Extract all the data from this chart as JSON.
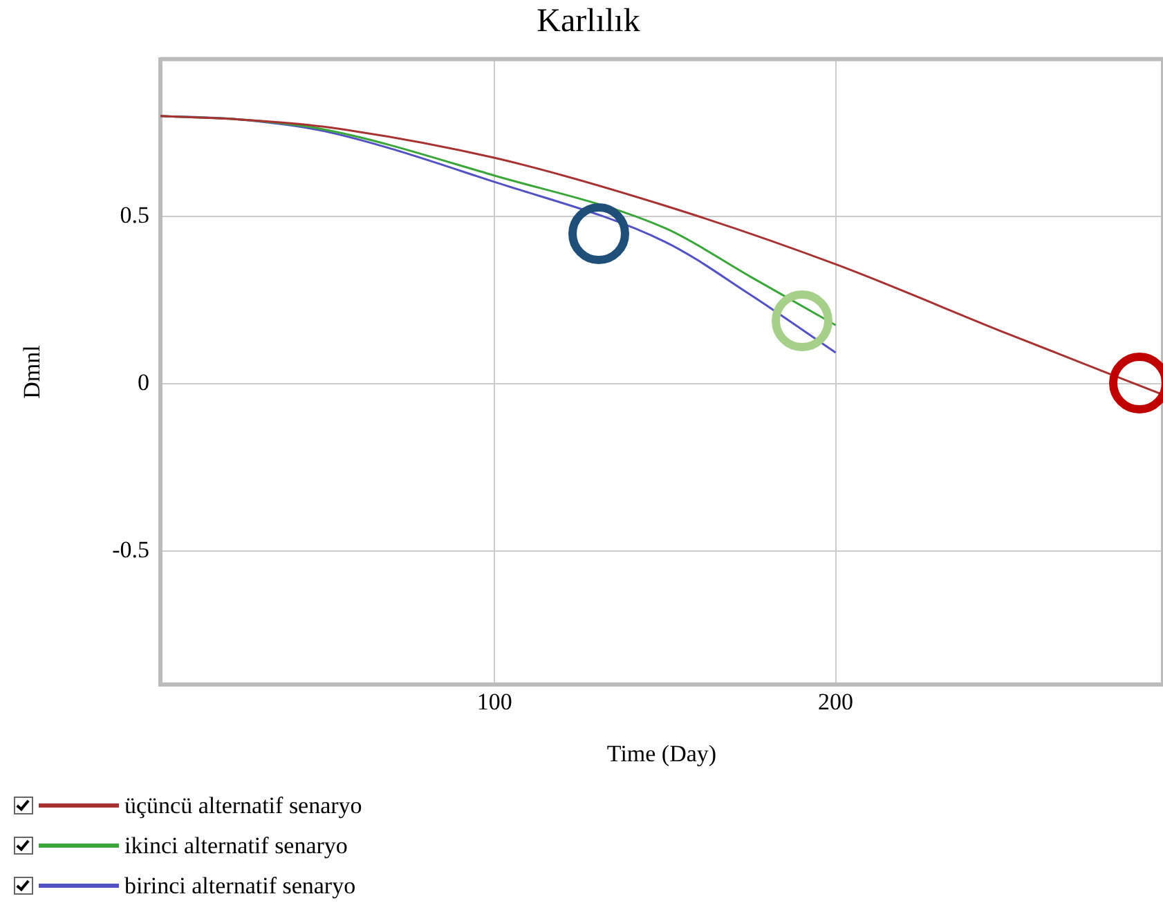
{
  "chart_data": {
    "type": "line",
    "title": "Karlılık",
    "xlabel": "Time (Day)",
    "ylabel": "Dmnl",
    "xlim": [
      2,
      296
    ],
    "xticks": [
      100,
      200
    ],
    "ylim": [
      -0.9,
      0.97
    ],
    "yticks": [
      -0.5,
      0,
      0.5
    ],
    "grid": true,
    "legend": "bottom",
    "marker": "none",
    "line_style": "solid",
    "series": [
      {
        "name": "üçüncü alternatif senaryo",
        "color": "#a83232",
        "x": [
          2,
          25,
          50,
          100,
          150,
          200,
          250,
          296
        ],
        "values": [
          0.8,
          0.79,
          0.768,
          0.675,
          0.532,
          0.357,
          0.151,
          -0.033
        ]
      },
      {
        "name": "ikinci alternatif senaryo",
        "color": "#3aa63a",
        "x": [
          2,
          25,
          50,
          100,
          150,
          175,
          200
        ],
        "values": [
          0.8,
          0.79,
          0.76,
          0.622,
          0.465,
          0.32,
          0.175
        ]
      },
      {
        "name": "birinci alternatif senaryo",
        "color": "#5252c4",
        "x": [
          2,
          25,
          50,
          100,
          150,
          175,
          200
        ],
        "values": [
          0.8,
          0.79,
          0.755,
          0.603,
          0.424,
          0.266,
          0.093
        ]
      }
    ]
  }
}
